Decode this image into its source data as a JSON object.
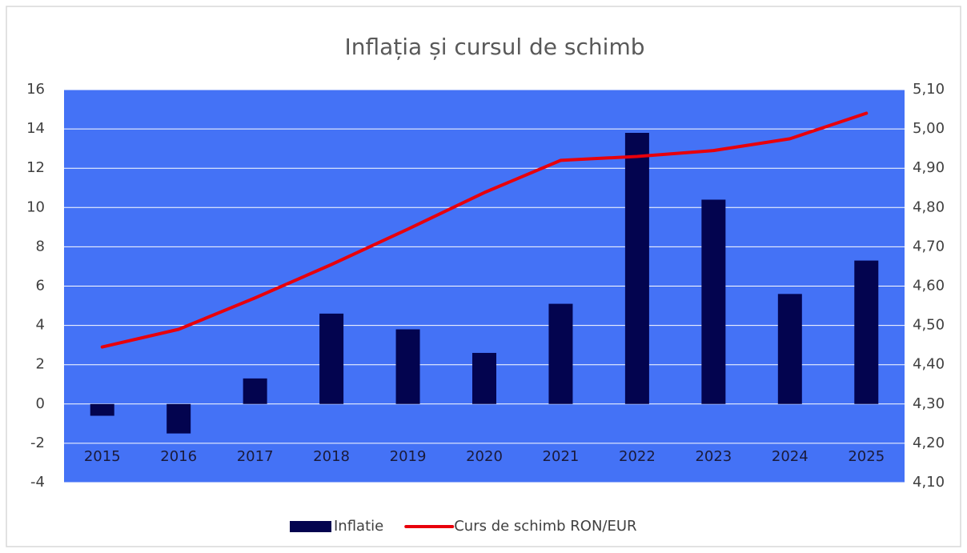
{
  "chart_data": {
    "type": "bar_line",
    "title": "Inflația și cursul de schimb",
    "categories": [
      "2015",
      "2016",
      "2017",
      "2018",
      "2019",
      "2020",
      "2021",
      "2022",
      "2023",
      "2024",
      "2025"
    ],
    "series": [
      {
        "name": "Inflatie",
        "type": "bar",
        "color": "#03044f",
        "values": [
          -0.6,
          -1.5,
          1.3,
          4.6,
          3.8,
          2.6,
          5.1,
          13.8,
          10.4,
          5.6,
          7.3
        ]
      },
      {
        "name": "Curs de schimb RON/EUR",
        "type": "line",
        "axis": "y2",
        "color": "#e8000b",
        "values": [
          4.445,
          4.49,
          4.57,
          4.655,
          4.745,
          4.838,
          4.92,
          4.93,
          4.945,
          4.975,
          5.04
        ]
      }
    ],
    "ylim": [
      -4,
      16
    ],
    "yticks": [
      -4,
      -2,
      0,
      2,
      4,
      6,
      8,
      10,
      12,
      14,
      16
    ],
    "y2lim": [
      4.1,
      5.1
    ],
    "y2ticks": [
      {
        "value": 4.1,
        "label": "4,10"
      },
      {
        "value": 4.2,
        "label": "4,20"
      },
      {
        "value": 4.3,
        "label": "4,30"
      },
      {
        "value": 4.4,
        "label": "4,40"
      },
      {
        "value": 4.5,
        "label": "4,50"
      },
      {
        "value": 4.6,
        "label": "4,60"
      },
      {
        "value": 4.7,
        "label": "4,70"
      },
      {
        "value": 4.8,
        "label": "4,80"
      },
      {
        "value": 4.9,
        "label": "4,90"
      },
      {
        "value": 5.0,
        "label": "5,00"
      },
      {
        "value": 5.1,
        "label": "5,10"
      }
    ],
    "grid": true,
    "legend": "bottom",
    "plot_background": "#4472f6"
  }
}
